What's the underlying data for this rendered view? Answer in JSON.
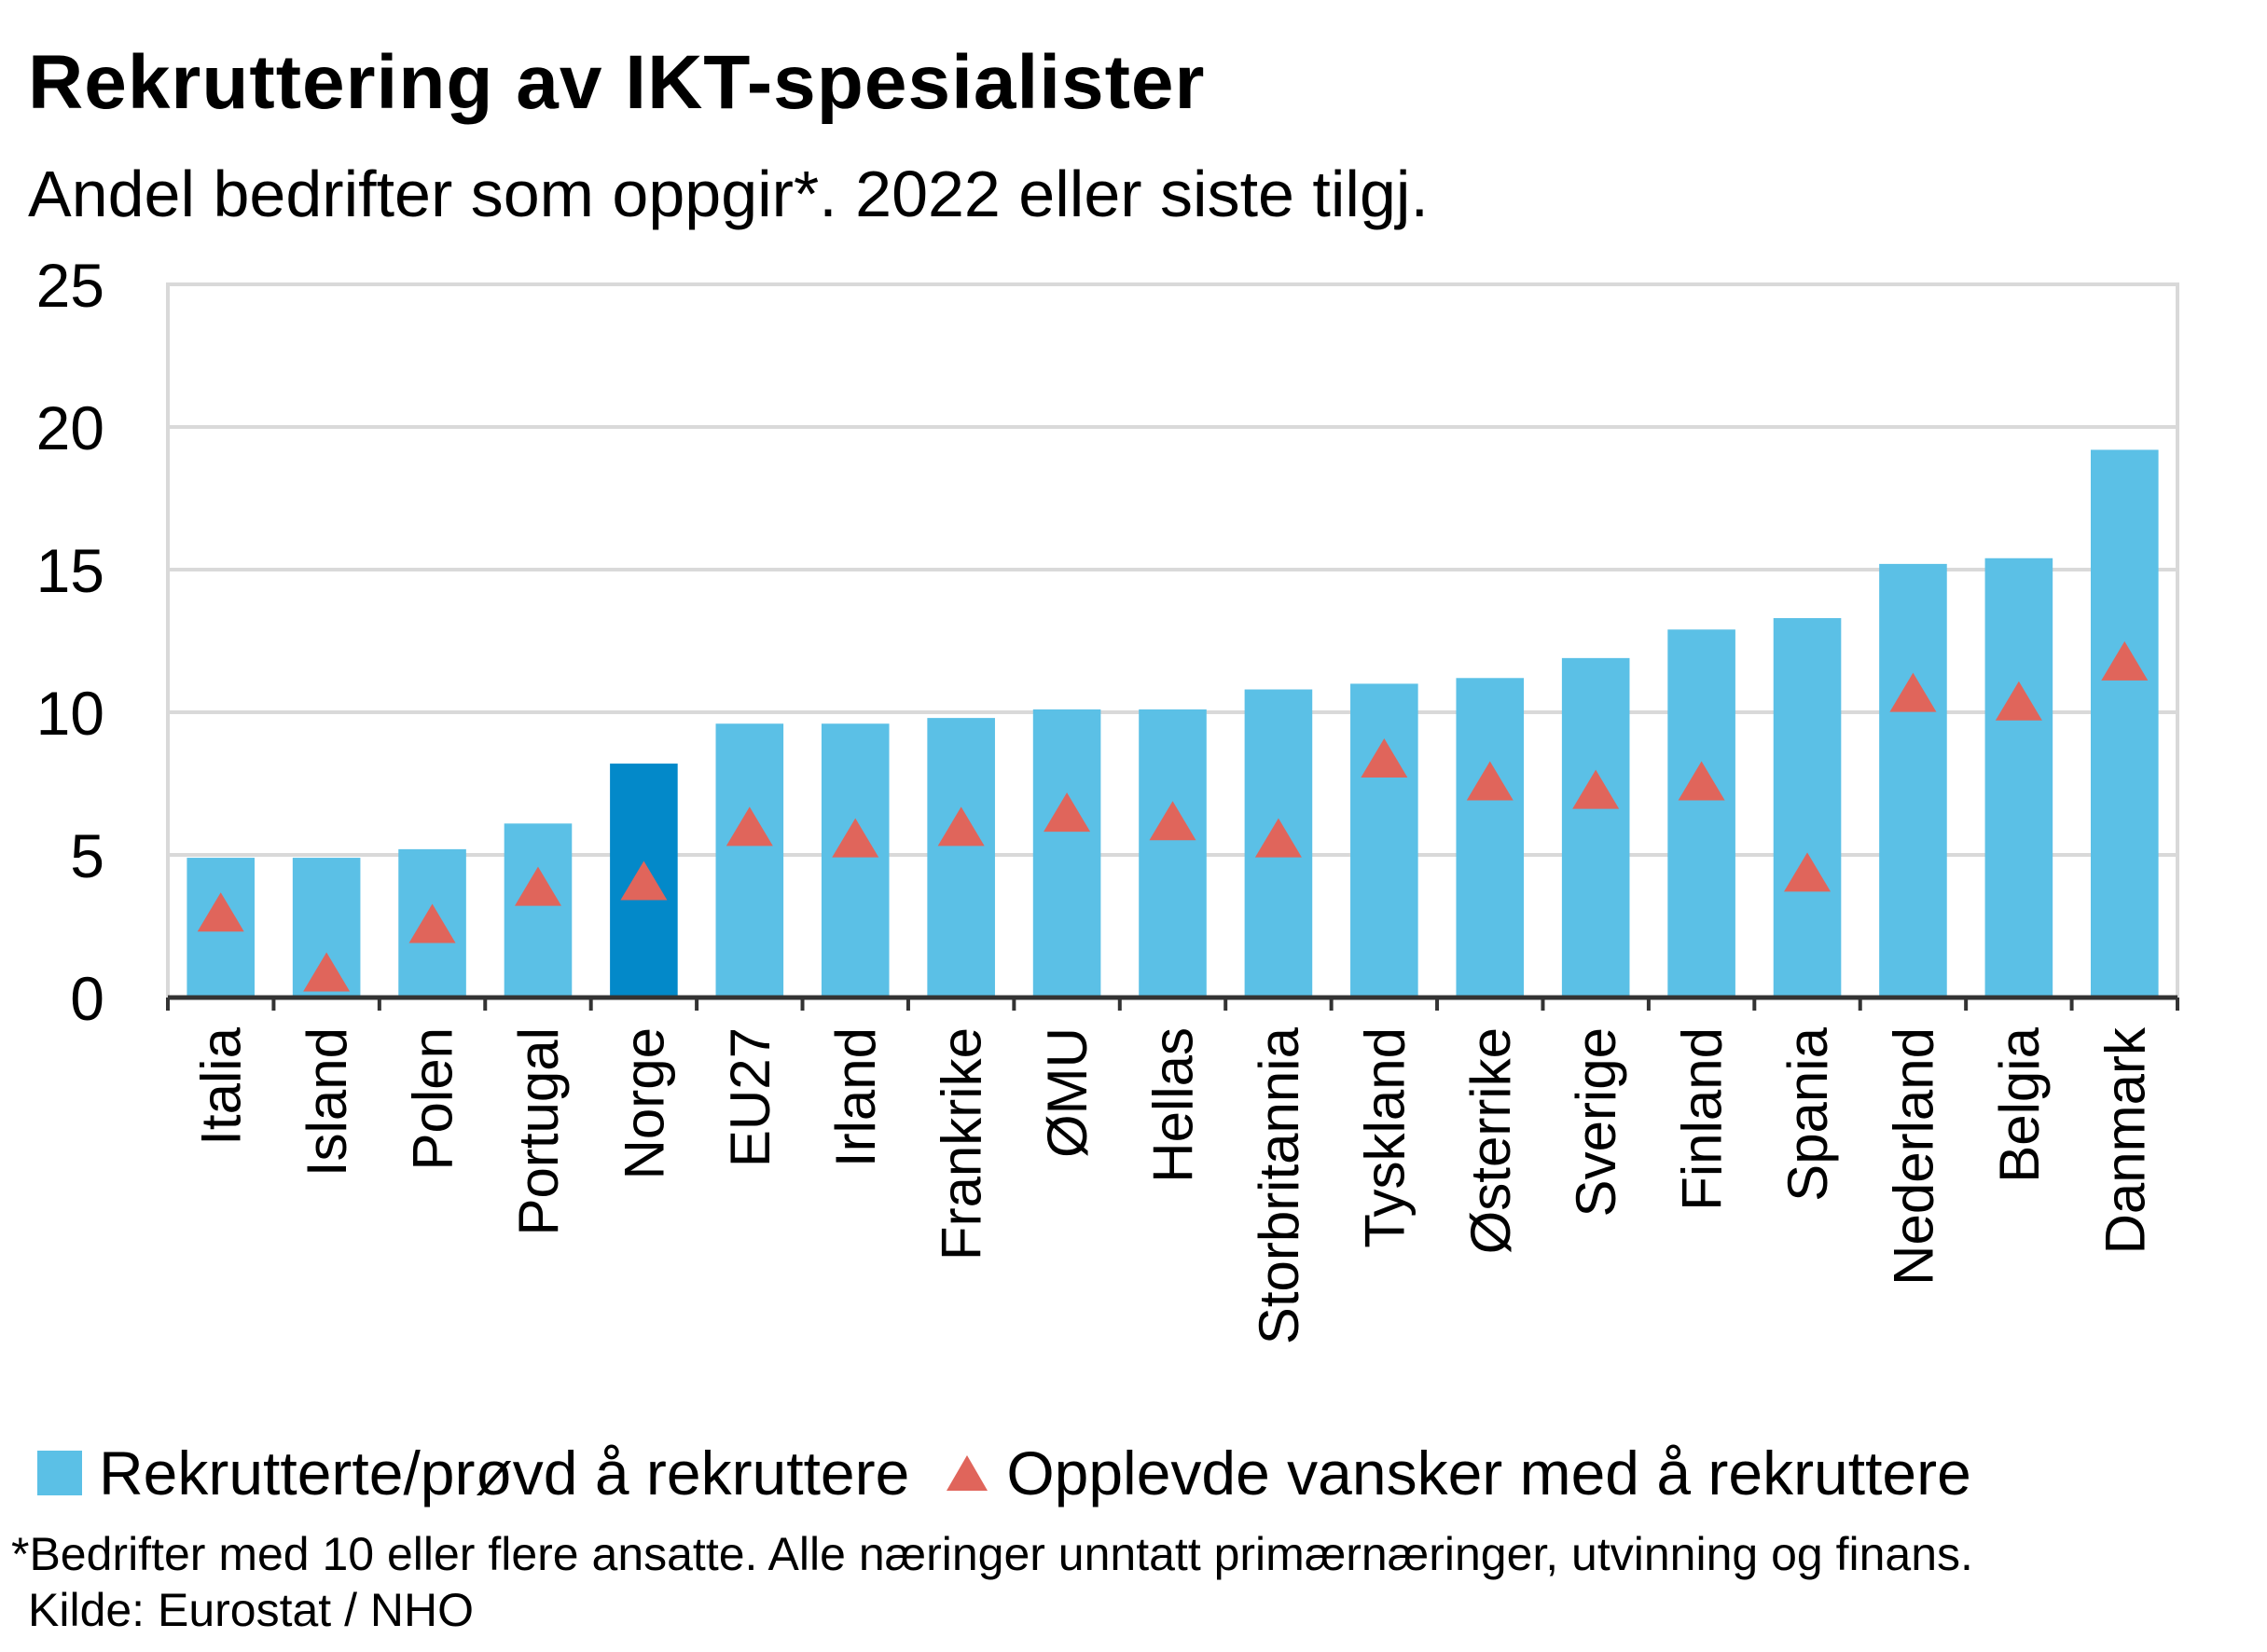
{
  "title": "Rekruttering  av IKT-spesialister",
  "subtitle": "Andel bedrifter som oppgir*. 2022 eller siste tilgj.",
  "legend": {
    "bar_label": "Rekrutterte/prøvd å rekruttere",
    "triangle_label": "Opplevde vansker med å rekruttere"
  },
  "note": "*Bedrifter med 10 eller flere ansatte. Alle næringer unntatt primærnæringer, utvinning og finans.",
  "source": "Kilde: Eurostat / NHO",
  "colors": {
    "bar": "#5bc0e6",
    "bar_highlight": "#0389c9",
    "triangle": "#e0655b",
    "grid": "#d9d9d9",
    "axis": "#333333"
  },
  "chart_data": {
    "type": "bar",
    "title": "Rekruttering  av IKT-spesialister",
    "subtitle": "Andel bedrifter som oppgir*. 2022 eller siste tilgj.",
    "categories": [
      "Italia",
      "Island",
      "Polen",
      "Portugal",
      "Norge",
      "EU27",
      "Irland",
      "Frankrike",
      "ØMU",
      "Hellas",
      "Storbritannia",
      "Tyskland",
      "Østerrike",
      "Sverige",
      "Finland",
      "Spania",
      "Nederland",
      "Belgia",
      "Danmark"
    ],
    "highlight": "Norge",
    "series": [
      {
        "name": "Rekrutterte/prøvd å rekruttere",
        "kind": "bar",
        "values": [
          4.9,
          4.9,
          5.2,
          6.1,
          8.2,
          9.6,
          9.6,
          9.8,
          10.1,
          10.1,
          10.8,
          11.0,
          11.2,
          11.9,
          12.9,
          13.3,
          15.2,
          15.4,
          19.2
        ]
      },
      {
        "name": "Opplevde vansker med å rekruttere",
        "kind": "triangle",
        "values": [
          3.0,
          0.9,
          2.6,
          3.9,
          4.1,
          6.0,
          5.6,
          6.0,
          6.5,
          6.2,
          5.6,
          8.4,
          7.6,
          7.3,
          7.6,
          4.4,
          10.7,
          10.4,
          11.8
        ]
      }
    ],
    "ylim": [
      0,
      25
    ],
    "yticks": [
      0,
      5,
      10,
      15,
      20,
      25
    ],
    "grid": true,
    "legend_position": "bottom"
  }
}
